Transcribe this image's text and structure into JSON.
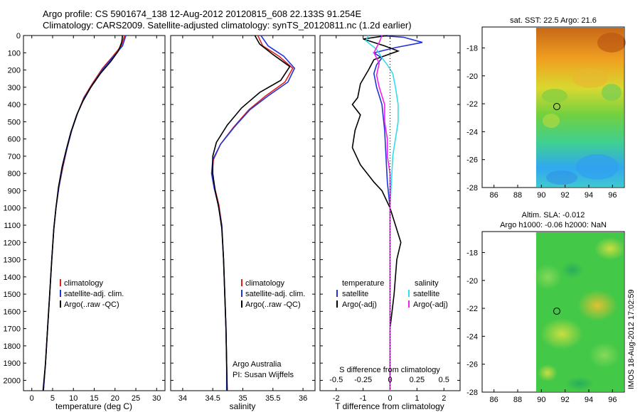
{
  "header": {
    "title_line1": "Argo profile: CS 5901674_138 12-Aug-2012 20120815_608 22.133S 91.254E",
    "title_line2": "Climatology: CARS2009. Satellite-adjusted climatology: synTS_20120811.nc (1.2d earlier)"
  },
  "stamp": "IMOS 18-Aug-2012 17:02:59",
  "colors": {
    "red": "#e0201a",
    "blue": "#2233dd",
    "black": "#000000",
    "cyan": "#33ddee",
    "magenta": "#ee22ee"
  },
  "chart_data": [
    {
      "id": "temperature",
      "type": "line",
      "xlabel": "temperature (deg C)",
      "xlim": [
        -2,
        32
      ],
      "xticks": [
        0,
        5,
        10,
        15,
        20,
        25,
        30
      ],
      "ylim": [
        0,
        2060
      ],
      "yticks": [
        0,
        100,
        200,
        300,
        400,
        500,
        600,
        700,
        800,
        900,
        1000,
        1100,
        1200,
        1300,
        1400,
        1500,
        1600,
        1700,
        1800,
        1900,
        2000
      ],
      "legend": [
        "climatology",
        "satellite-adj. clim.",
        "Argo(..raw -QC)"
      ],
      "series": [
        {
          "name": "climatology",
          "color": "red",
          "points": [
            [
              22.3,
              0
            ],
            [
              21.5,
              60
            ],
            [
              19.5,
              120
            ],
            [
              17,
              190
            ],
            [
              14.5,
              280
            ],
            [
              12.5,
              360
            ],
            [
              11,
              450
            ],
            [
              9.6,
              550
            ],
            [
              8.5,
              650
            ],
            [
              7.5,
              760
            ],
            [
              6.5,
              880
            ],
            [
              5.8,
              1000
            ],
            [
              5.3,
              1120
            ],
            [
              4.8,
              1300
            ],
            [
              4.3,
              1500
            ],
            [
              3.8,
              1700
            ],
            [
              3.3,
              1900
            ],
            [
              2.8,
              2060
            ]
          ]
        },
        {
          "name": "satellite-adj. clim.",
          "color": "blue",
          "points": [
            [
              22.6,
              0
            ],
            [
              21.8,
              60
            ],
            [
              19.7,
              120
            ],
            [
              17.2,
              190
            ],
            [
              14.7,
              280
            ],
            [
              12.6,
              360
            ],
            [
              11,
              450
            ],
            [
              9.6,
              550
            ],
            [
              8.5,
              650
            ],
            [
              7.4,
              760
            ],
            [
              6.5,
              880
            ],
            [
              5.8,
              1000
            ],
            [
              5.3,
              1120
            ],
            [
              4.8,
              1300
            ],
            [
              4.3,
              1500
            ],
            [
              3.8,
              1700
            ],
            [
              3.3,
              1900
            ],
            [
              2.8,
              2060
            ]
          ]
        },
        {
          "name": "Argo(..raw -QC)",
          "color": "black",
          "points": [
            [
              21.8,
              0
            ],
            [
              21.6,
              40
            ],
            [
              20.8,
              90
            ],
            [
              19,
              150
            ],
            [
              16.5,
              220
            ],
            [
              14.2,
              300
            ],
            [
              12.3,
              380
            ],
            [
              10.8,
              460
            ],
            [
              9.4,
              560
            ],
            [
              8.3,
              660
            ],
            [
              7.3,
              760
            ],
            [
              6.4,
              880
            ],
            [
              5.8,
              1000
            ],
            [
              5.3,
              1120
            ],
            [
              4.8,
              1300
            ],
            [
              4.3,
              1500
            ],
            [
              3.8,
              1700
            ],
            [
              3.3,
              1900
            ],
            [
              2.7,
              2060
            ]
          ]
        }
      ]
    },
    {
      "id": "salinity",
      "type": "line",
      "xlabel": "salinity",
      "xlim": [
        33.8,
        36.2
      ],
      "xticks": [
        34,
        34.5,
        35,
        35.5,
        36
      ],
      "legend": [
        "climatology",
        "satellite-adj. clim.",
        "Argo(..raw -QC)"
      ],
      "note": [
        "Argo Australia",
        "PI: Susan Wijffels"
      ],
      "series": [
        {
          "name": "climatology",
          "color": "red",
          "points": [
            [
              35.25,
              0
            ],
            [
              35.33,
              60
            ],
            [
              35.6,
              120
            ],
            [
              35.83,
              190
            ],
            [
              35.7,
              270
            ],
            [
              35.38,
              350
            ],
            [
              35.1,
              430
            ],
            [
              34.85,
              530
            ],
            [
              34.63,
              630
            ],
            [
              34.51,
              720
            ],
            [
              34.49,
              800
            ],
            [
              34.53,
              880
            ],
            [
              34.6,
              980
            ],
            [
              34.65,
              1100
            ],
            [
              34.68,
              1300
            ],
            [
              34.7,
              1500
            ],
            [
              34.72,
              1700
            ],
            [
              34.73,
              1900
            ],
            [
              34.74,
              2060
            ]
          ]
        },
        {
          "name": "satellite-adj. clim.",
          "color": "blue",
          "points": [
            [
              35.3,
              0
            ],
            [
              35.42,
              60
            ],
            [
              35.68,
              120
            ],
            [
              35.86,
              190
            ],
            [
              35.75,
              270
            ],
            [
              35.42,
              350
            ],
            [
              35.12,
              430
            ],
            [
              34.86,
              530
            ],
            [
              34.63,
              630
            ],
            [
              34.5,
              720
            ],
            [
              34.48,
              800
            ],
            [
              34.52,
              880
            ],
            [
              34.59,
              980
            ],
            [
              34.65,
              1100
            ],
            [
              34.68,
              1300
            ],
            [
              34.7,
              1500
            ],
            [
              34.72,
              1700
            ],
            [
              34.73,
              1900
            ],
            [
              34.73,
              2060
            ]
          ]
        },
        {
          "name": "Argo(..raw -QC)",
          "color": "black",
          "points": [
            [
              35.2,
              0
            ],
            [
              35.28,
              50
            ],
            [
              35.5,
              110
            ],
            [
              35.78,
              180
            ],
            [
              35.63,
              260
            ],
            [
              35.28,
              330
            ],
            [
              34.98,
              420
            ],
            [
              34.74,
              520
            ],
            [
              34.56,
              620
            ],
            [
              34.5,
              700
            ],
            [
              34.5,
              800
            ],
            [
              34.54,
              900
            ],
            [
              34.6,
              1000
            ],
            [
              34.65,
              1120
            ],
            [
              34.68,
              1300
            ],
            [
              34.7,
              1500
            ],
            [
              34.72,
              1700
            ],
            [
              34.73,
              1900
            ],
            [
              34.74,
              2060
            ]
          ]
        }
      ]
    },
    {
      "id": "difference",
      "type": "line",
      "xlabel_top": "S difference from climatology",
      "xlabel_bottom": "T difference from climatology",
      "xlim": [
        -2.6,
        2.6
      ],
      "xticks_bottom": [
        -2,
        -1,
        0,
        1,
        2
      ],
      "xticks_top_labels": [
        "-0.5",
        "-0.25",
        "0",
        "0.25",
        "0.5"
      ],
      "xticks_top_values": [
        -2,
        -1,
        0,
        1,
        2
      ],
      "legend_left_title": "temperature",
      "legend_right_title": "salinity",
      "legend_left": [
        "satellite",
        "Argo(-adj)"
      ],
      "legend_right": [
        "satellite",
        "Argo(-adj)"
      ],
      "series": [
        {
          "name": "T satellite",
          "color": "blue",
          "points": [
            [
              -0.4,
              0
            ],
            [
              0.5,
              10
            ],
            [
              1.2,
              40
            ],
            [
              0.2,
              70
            ],
            [
              -0.6,
              100
            ],
            [
              -0.3,
              130
            ],
            [
              -0.5,
              170
            ],
            [
              -0.6,
              220
            ],
            [
              -0.5,
              300
            ],
            [
              -0.3,
              400
            ],
            [
              -0.2,
              550
            ],
            [
              -0.15,
              700
            ],
            [
              -0.1,
              850
            ],
            [
              0,
              1000
            ],
            [
              0,
              1200
            ],
            [
              0,
              1500
            ],
            [
              0,
              2060
            ]
          ]
        },
        {
          "name": "T Argo(-adj)",
          "color": "black",
          "points": [
            [
              -0.1,
              0
            ],
            [
              -1.0,
              20
            ],
            [
              -0.2,
              60
            ],
            [
              0.3,
              90
            ],
            [
              -0.6,
              140
            ],
            [
              -0.8,
              200
            ],
            [
              -1.1,
              280
            ],
            [
              -1.2,
              360
            ],
            [
              -1.4,
              400
            ],
            [
              -1.1,
              460
            ],
            [
              -1.3,
              550
            ],
            [
              -1.4,
              650
            ],
            [
              -1.1,
              750
            ],
            [
              -0.6,
              850
            ],
            [
              -0.3,
              900
            ],
            [
              0,
              1000
            ],
            [
              0.4,
              1200
            ],
            [
              0.25,
              1300
            ],
            [
              0.15,
              1500
            ],
            [
              0,
              1700
            ],
            [
              0,
              2060
            ]
          ]
        },
        {
          "name": "S satellite",
          "color": "cyan",
          "points": [
            [
              -0.8,
              0
            ],
            [
              -0.9,
              30
            ],
            [
              -0.5,
              80
            ],
            [
              -0.3,
              130
            ],
            [
              -0.1,
              170
            ],
            [
              0.1,
              220
            ],
            [
              0.2,
              300
            ],
            [
              0.3,
              400
            ],
            [
              0.3,
              500
            ],
            [
              0.2,
              600
            ],
            [
              0.1,
              700
            ],
            [
              0.05,
              850
            ],
            [
              0,
              1000
            ],
            [
              0,
              1500
            ],
            [
              0,
              2060
            ]
          ]
        },
        {
          "name": "S Argo(-adj)",
          "color": "magenta",
          "points": [
            [
              -0.3,
              0
            ],
            [
              -0.4,
              40
            ],
            [
              -0.6,
              100
            ],
            [
              -0.4,
              160
            ],
            [
              -0.5,
              230
            ],
            [
              -0.4,
              300
            ],
            [
              -0.2,
              400
            ],
            [
              -0.2,
              500
            ],
            [
              -0.1,
              600
            ],
            [
              -0.1,
              700
            ],
            [
              0,
              800
            ],
            [
              0,
              950
            ],
            [
              0,
              1100
            ],
            [
              0,
              1500
            ],
            [
              0,
              2060
            ]
          ]
        }
      ]
    },
    {
      "id": "sst_map",
      "type": "heatmap",
      "title": "sat. SST: 22.5 Argo: 21.6",
      "xlim": [
        85,
        97
      ],
      "ylim": [
        -28,
        -16.5
      ],
      "xticks": [
        86,
        88,
        90,
        92,
        94,
        96
      ],
      "yticks": [
        -18,
        -20,
        -22,
        -24,
        -26,
        -28
      ],
      "data_start_lon": 89.9,
      "marker": {
        "lon": 91.3,
        "lat": -22.2
      }
    },
    {
      "id": "sla_map",
      "type": "heatmap",
      "title_line1": "Altim. SLA: -0.012",
      "title_line2": "Argo h1000: -0.06 h2000: NaN",
      "xlim": [
        85,
        97
      ],
      "ylim": [
        -28,
        -16.5
      ],
      "xticks": [
        86,
        88,
        90,
        92,
        94,
        96
      ],
      "yticks": [
        -18,
        -20,
        -22,
        -24,
        -26,
        -28
      ],
      "data_start_lon": 89.9,
      "marker": {
        "lon": 91.3,
        "lat": -22.2
      }
    }
  ]
}
